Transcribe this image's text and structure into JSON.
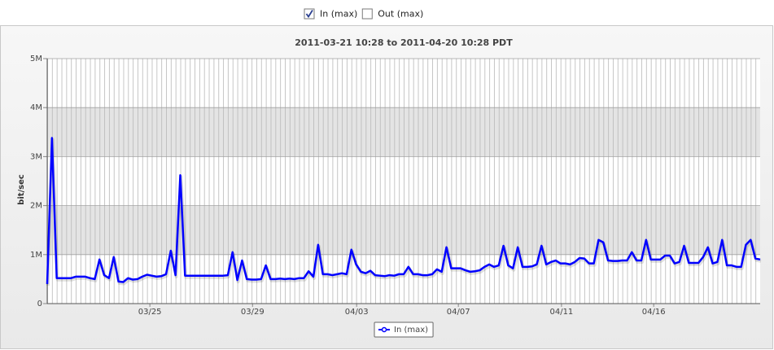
{
  "toolbar": {
    "controls": [
      {
        "label": "In (max)",
        "checked": true
      },
      {
        "label": "Out (max)",
        "checked": false
      }
    ]
  },
  "chart_data": {
    "type": "line",
    "title": "2011-03-21 10:28 to 2011-04-20 10:28 PDT",
    "y_label": "bit/sec",
    "xlim": [
      0,
      150
    ],
    "xticks": [
      {
        "value": 21.6,
        "label": "03/25"
      },
      {
        "value": 43.2,
        "label": "03/29"
      },
      {
        "value": 65.1,
        "label": "04/03"
      },
      {
        "value": 86.5,
        "label": "04/07"
      },
      {
        "value": 108.2,
        "label": "04/11"
      },
      {
        "value": 127.6,
        "label": "04/16"
      }
    ],
    "ylim": [
      0,
      5000000
    ],
    "yticks": [
      0,
      {
        "value": 1000000,
        "label": "1M"
      },
      {
        "value": 2000000,
        "label": "2M"
      },
      {
        "value": 3000000,
        "label": "3M"
      },
      {
        "value": 4000000,
        "label": "4M"
      },
      {
        "value": 5000000,
        "label": "5M"
      }
    ],
    "grid": true,
    "legend": "bottom",
    "series": [
      {
        "name": "In (max)",
        "color": "#0000ff",
        "values": [
          400000,
          3380000,
          520000,
          520000,
          520000,
          520000,
          550000,
          550000,
          550000,
          520000,
          500000,
          900000,
          580000,
          520000,
          950000,
          450000,
          440000,
          520000,
          490000,
          500000,
          550000,
          590000,
          570000,
          550000,
          560000,
          600000,
          1080000,
          580000,
          2620000,
          570000,
          570000,
          570000,
          570000,
          570000,
          570000,
          570000,
          570000,
          570000,
          580000,
          1050000,
          480000,
          880000,
          500000,
          490000,
          490000,
          500000,
          780000,
          500000,
          500000,
          510000,
          500000,
          510000,
          500000,
          520000,
          520000,
          660000,
          550000,
          1200000,
          600000,
          600000,
          580000,
          600000,
          620000,
          600000,
          1100000,
          800000,
          650000,
          620000,
          670000,
          580000,
          570000,
          560000,
          580000,
          570000,
          600000,
          600000,
          750000,
          600000,
          600000,
          580000,
          580000,
          600000,
          700000,
          650000,
          1150000,
          720000,
          720000,
          720000,
          680000,
          650000,
          660000,
          680000,
          750000,
          800000,
          750000,
          780000,
          1180000,
          780000,
          720000,
          1150000,
          750000,
          750000,
          760000,
          800000,
          1180000,
          800000,
          850000,
          880000,
          820000,
          820000,
          800000,
          850000,
          930000,
          920000,
          820000,
          820000,
          1300000,
          1250000,
          880000,
          870000,
          870000,
          880000,
          880000,
          1050000,
          880000,
          880000,
          1300000,
          900000,
          900000,
          900000,
          980000,
          980000,
          820000,
          850000,
          1180000,
          830000,
          830000,
          830000,
          950000,
          1150000,
          820000,
          850000,
          1300000,
          780000,
          780000,
          750000,
          750000,
          1200000,
          1300000,
          920000,
          900000
        ]
      }
    ]
  }
}
